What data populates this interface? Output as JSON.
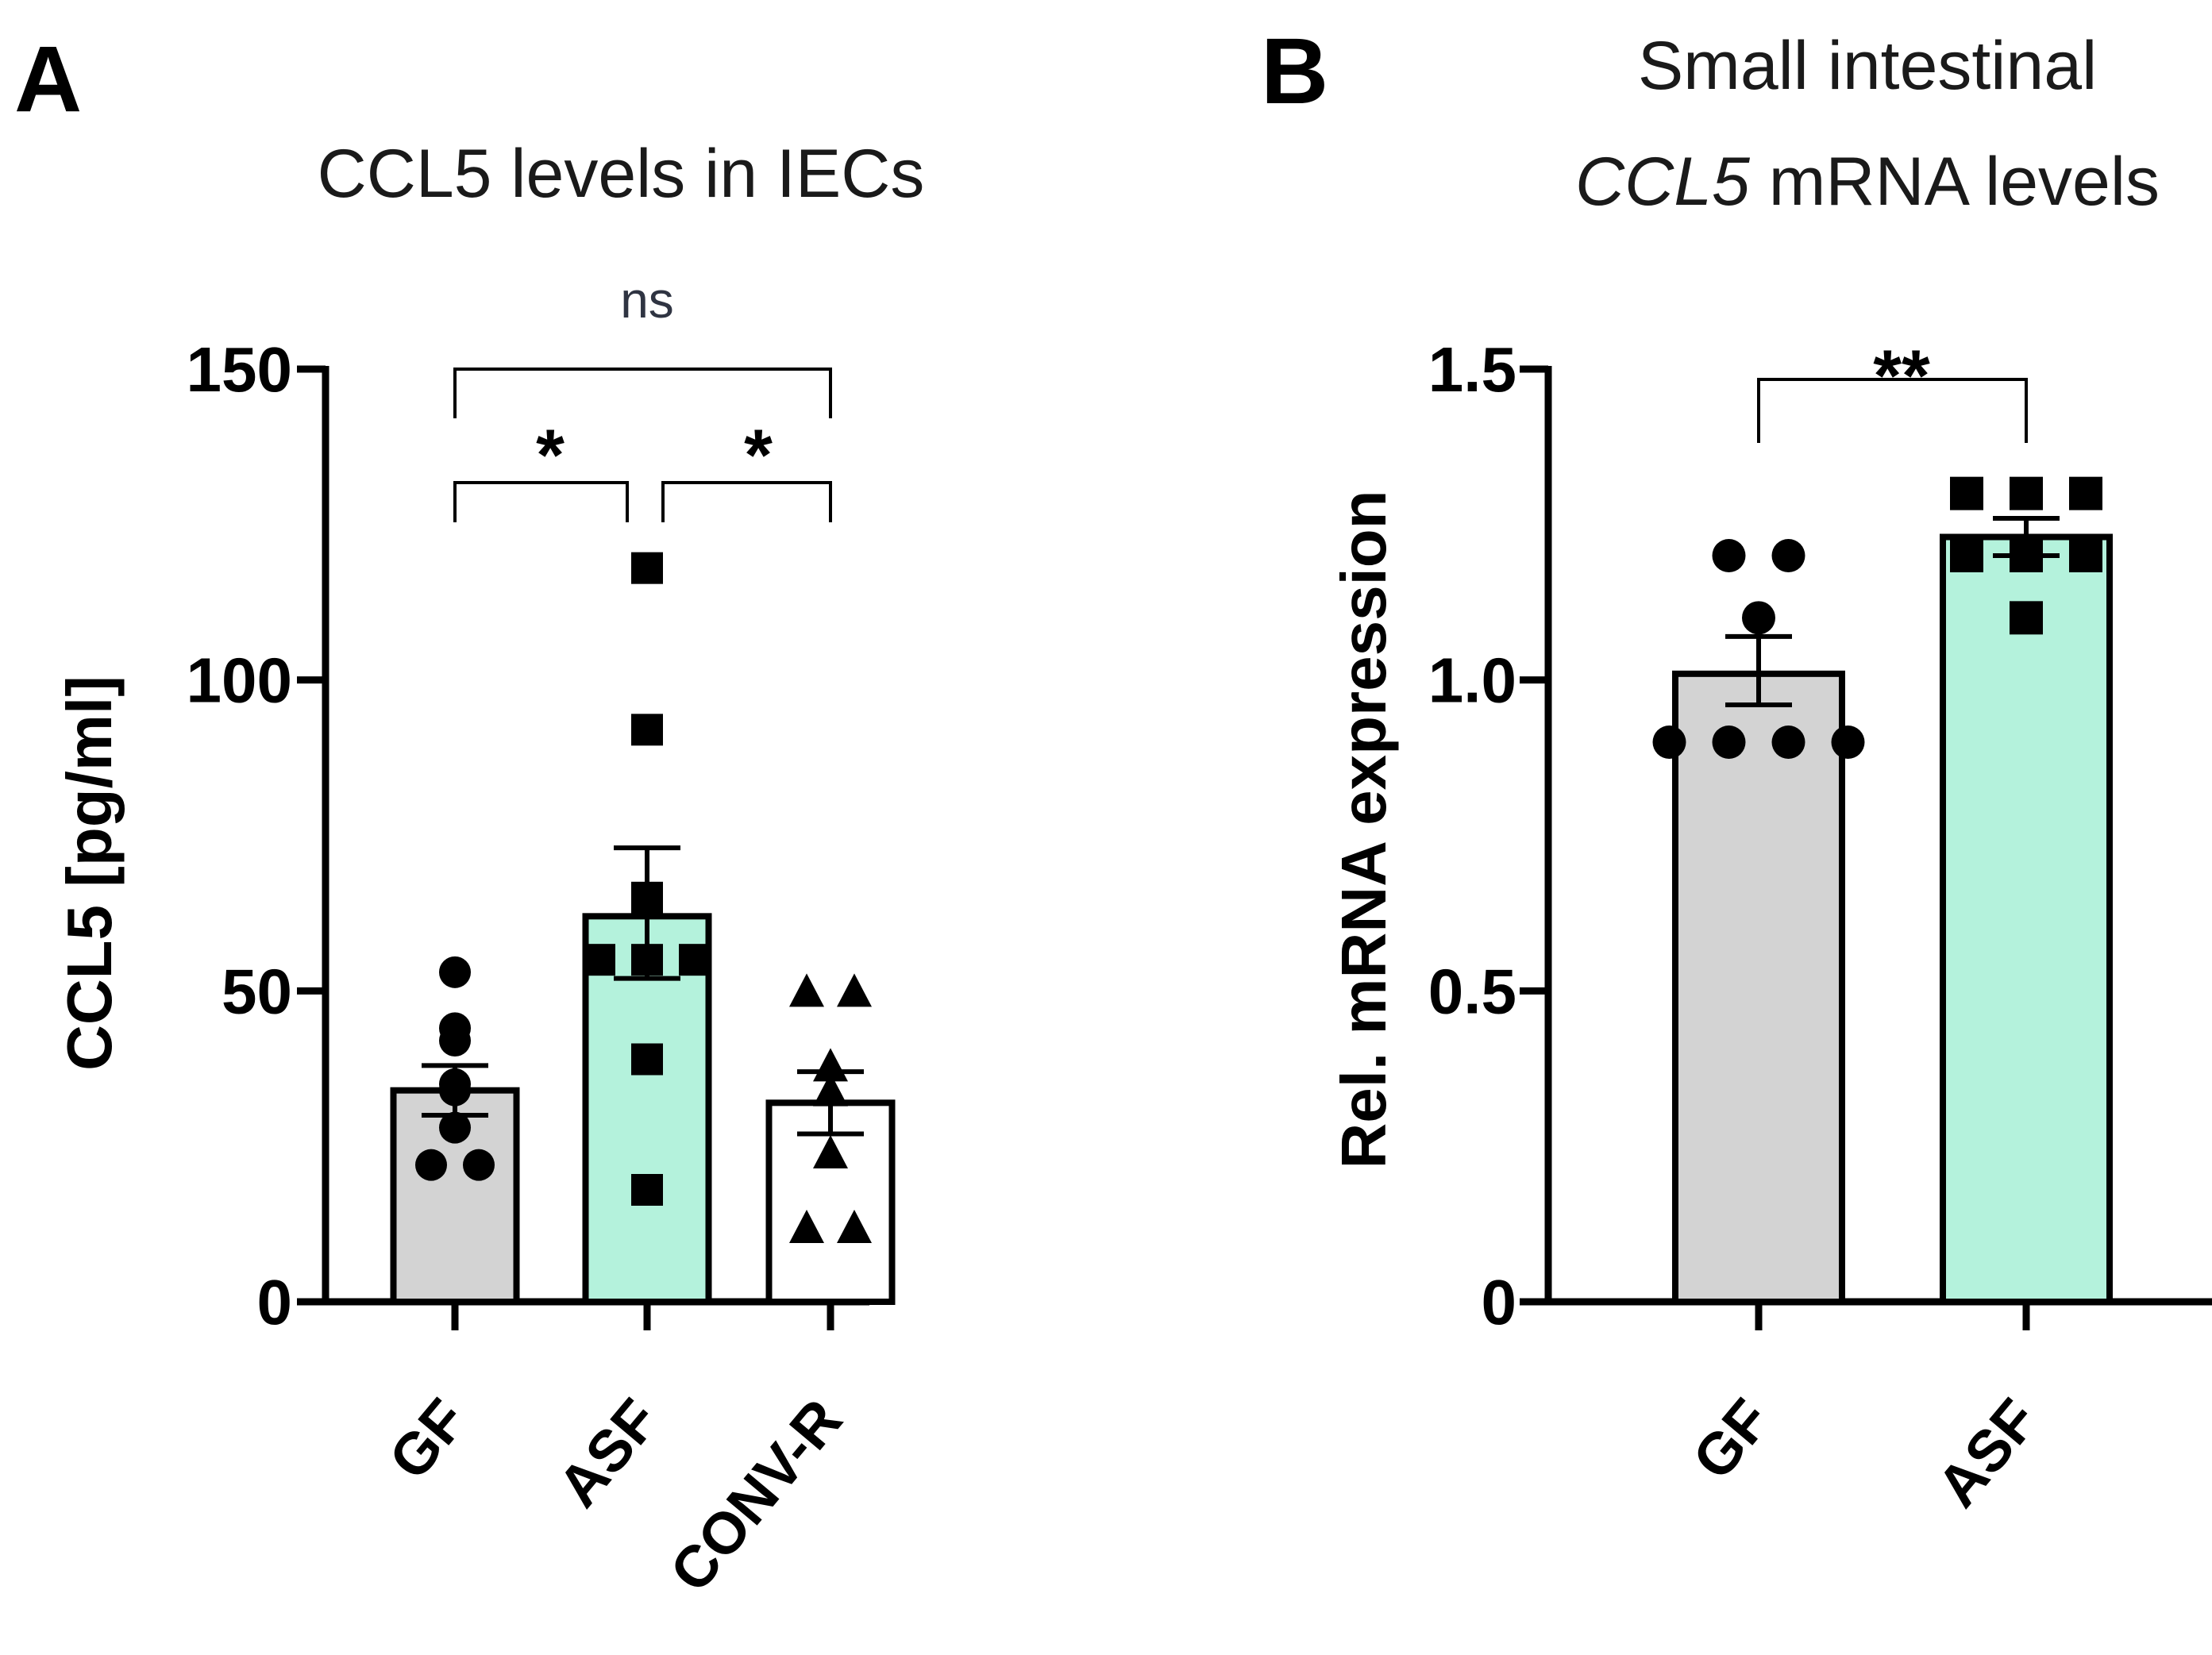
{
  "chart_data": [
    {
      "panel_label": "A",
      "type": "bar",
      "title_lines": [
        "CCL5 levels in IECs"
      ],
      "ylabel": "CCL5 [pg/ml]",
      "ylim": [
        0,
        150
      ],
      "yticks": [
        0,
        50,
        100,
        150
      ],
      "ytick_labels": [
        "0",
        "50",
        "100",
        "150"
      ],
      "categories": [
        "GF",
        "ASF",
        "CONV-R"
      ],
      "series": [
        {
          "name": "GF",
          "mean": 34,
          "sem_low": 30,
          "sem_high": 38,
          "color": "#d3d3d3",
          "marker": "circle",
          "points": [
            53,
            44,
            42,
            35,
            34,
            28,
            22,
            22
          ]
        },
        {
          "name": "ASF",
          "mean": 62,
          "sem_low": 52,
          "sem_high": 73,
          "color": "#b4f2dc",
          "marker": "square",
          "points": [
            118,
            92,
            65,
            55,
            55,
            55,
            39,
            18
          ]
        },
        {
          "name": "CONV-R",
          "mean": 32,
          "sem_low": 27,
          "sem_high": 37,
          "color": "#ffffff",
          "marker": "triangle",
          "points": [
            50,
            50,
            38,
            34,
            24,
            12,
            12
          ]
        }
      ],
      "comparisons": [
        {
          "from": "GF",
          "to": "ASF",
          "label": "*"
        },
        {
          "from": "ASF",
          "to": "CONV-R",
          "label": "*"
        },
        {
          "from": "GF",
          "to": "CONV-R",
          "label": "ns"
        }
      ]
    },
    {
      "panel_label": "B",
      "type": "bar",
      "title_lines": [
        "Small intestinal",
        "CCL5 mRNA levels"
      ],
      "title_italic_word": "CCL5",
      "ylabel": "Rel. mRNA expression",
      "ylim": [
        0,
        1.5
      ],
      "yticks": [
        0,
        0.5,
        1.0,
        1.5
      ],
      "ytick_labels": [
        "0",
        "0.5",
        "1.0",
        "1.5"
      ],
      "categories": [
        "GF",
        "ASF"
      ],
      "series": [
        {
          "name": "GF",
          "mean": 1.01,
          "sem_low": 0.96,
          "sem_high": 1.07,
          "color": "#d3d3d3",
          "marker": "circle",
          "points": [
            1.2,
            1.2,
            1.1,
            0.9,
            0.9,
            0.9,
            0.9
          ]
        },
        {
          "name": "ASF",
          "mean": 1.23,
          "sem_low": 1.2,
          "sem_high": 1.26,
          "color": "#b4f2dc",
          "marker": "square",
          "points": [
            1.3,
            1.3,
            1.3,
            1.2,
            1.2,
            1.2,
            1.1
          ]
        }
      ],
      "comparisons": [
        {
          "from": "GF",
          "to": "ASF",
          "label": "**"
        }
      ]
    }
  ]
}
